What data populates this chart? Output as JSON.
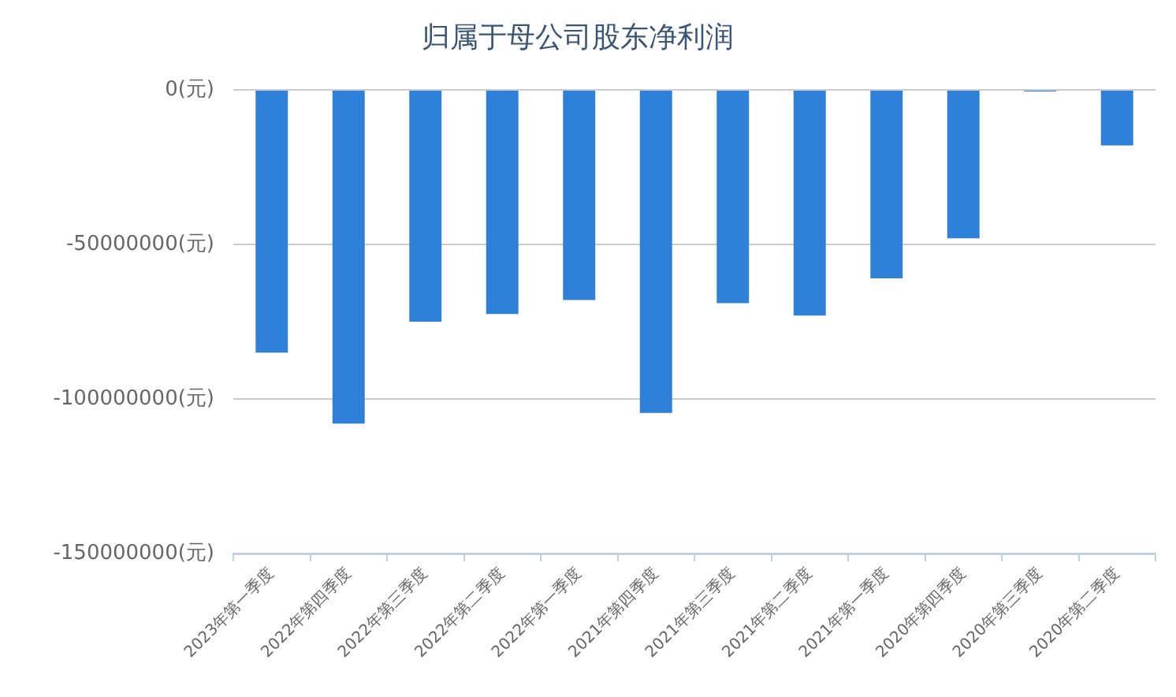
{
  "chart_data": {
    "type": "bar",
    "title": "归属于母公司股东净利润",
    "categories": [
      "2023年第一季度",
      "2022年第四季度",
      "2022年第三季度",
      "2022年第二季度",
      "2022年第一季度",
      "2021年第四季度",
      "2021年第三季度",
      "2021年第二季度",
      "2021年第一季度",
      "2020年第四季度",
      "2020年第三季度",
      "2020年第二季度"
    ],
    "values": [
      -85000000,
      -108000000,
      -75000000,
      -72500000,
      -68000000,
      -104500000,
      -69000000,
      -73000000,
      -61000000,
      -48000000,
      -500000,
      -18000000
    ],
    "color": "#2f80d8",
    "ylim": [
      -150000000,
      0
    ],
    "yticks": [
      {
        "value": -150000000,
        "label": "-150000000(元)"
      },
      {
        "value": -100000000,
        "label": "-100000000(元)"
      },
      {
        "value": -50000000,
        "label": "-50000000(元)"
      },
      {
        "value": 0,
        "label": "0(元)"
      }
    ],
    "grid": "y"
  }
}
